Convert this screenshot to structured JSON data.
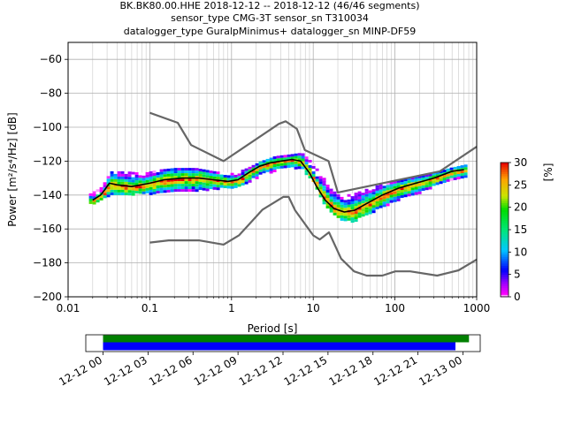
{
  "chart_data": {
    "type": "heatmap",
    "title_lines": [
      "BK.BK80.00.HHE   2018-12-12 -- 2018-12-12  (46/46 segments)",
      "sensor_type CMG-3T sensor_sn T310034",
      "datalogger_type GuralpMinimus+ datalogger_sn MINP-DF59"
    ],
    "xlabel": "Period [s]",
    "ylabel": "Power [m²/s⁴/Hz] [dB]",
    "xscale": "log",
    "xlim": [
      0.01,
      1000
    ],
    "ylim": [
      -200,
      -50
    ],
    "grid": true,
    "x_ticks": [
      {
        "value": 0.01,
        "label": "0.01"
      },
      {
        "value": 0.1,
        "label": "0.1"
      },
      {
        "value": 1,
        "label": "1"
      },
      {
        "value": 10,
        "label": "10"
      },
      {
        "value": 100,
        "label": "100"
      },
      {
        "value": 1000,
        "label": "1000"
      }
    ],
    "y_ticks": [
      {
        "value": -60,
        "label": "−60"
      },
      {
        "value": -80,
        "label": "−80"
      },
      {
        "value": -100,
        "label": "−100"
      },
      {
        "value": -120,
        "label": "−120"
      },
      {
        "value": -140,
        "label": "−140"
      },
      {
        "value": -160,
        "label": "−160"
      },
      {
        "value": -180,
        "label": "−180"
      },
      {
        "value": -200,
        "label": "−200"
      }
    ],
    "colorbar": {
      "label": "[%]",
      "min": 0,
      "max": 30,
      "ticks": [
        {
          "value": 0,
          "label": "0"
        },
        {
          "value": 5,
          "label": "5"
        },
        {
          "value": 10,
          "label": "10"
        },
        {
          "value": 15,
          "label": "15"
        },
        {
          "value": 20,
          "label": "20"
        },
        {
          "value": 25,
          "label": "25"
        },
        {
          "value": 30,
          "label": "30"
        }
      ]
    },
    "noise_model_high": {
      "color": "#666666",
      "points": [
        [
          0.1,
          -91.5
        ],
        [
          0.22,
          -97.4
        ],
        [
          0.32,
          -110.5
        ],
        [
          0.8,
          -120
        ],
        [
          3.8,
          -98
        ],
        [
          4.6,
          -96.5
        ],
        [
          6.3,
          -101
        ],
        [
          7.9,
          -113.5
        ],
        [
          15.4,
          -120
        ],
        [
          20,
          -138.5
        ],
        [
          354.8,
          -126
        ],
        [
          1000,
          -111.5
        ]
      ]
    },
    "noise_model_low": {
      "color": "#666666",
      "points": [
        [
          0.1,
          -168
        ],
        [
          0.17,
          -166.7
        ],
        [
          0.4,
          -166.7
        ],
        [
          0.8,
          -169.2
        ],
        [
          1.24,
          -163.7
        ],
        [
          2.4,
          -148.6
        ],
        [
          4.3,
          -141.1
        ],
        [
          5,
          -141.1
        ],
        [
          6,
          -149
        ],
        [
          10,
          -163.8
        ],
        [
          12,
          -166.2
        ],
        [
          15.6,
          -162
        ],
        [
          21.9,
          -177.5
        ],
        [
          31.6,
          -185
        ],
        [
          45,
          -187.5
        ],
        [
          70,
          -187.5
        ],
        [
          101,
          -185
        ],
        [
          154,
          -185
        ],
        [
          328,
          -187.5
        ],
        [
          600,
          -184.4
        ],
        [
          1000,
          -178
        ]
      ]
    },
    "mean_curve": {
      "color": "#000000",
      "points": [
        [
          0.02,
          -143
        ],
        [
          0.025,
          -140
        ],
        [
          0.028,
          -137
        ],
        [
          0.032,
          -133
        ],
        [
          0.04,
          -134
        ],
        [
          0.06,
          -135
        ],
        [
          0.1,
          -133
        ],
        [
          0.15,
          -131
        ],
        [
          0.25,
          -130
        ],
        [
          0.4,
          -130
        ],
        [
          0.6,
          -131
        ],
        [
          0.9,
          -132
        ],
        [
          1.2,
          -131
        ],
        [
          1.6,
          -127
        ],
        [
          2.2,
          -123
        ],
        [
          3,
          -121
        ],
        [
          4,
          -120
        ],
        [
          5.5,
          -119
        ],
        [
          7,
          -120
        ],
        [
          9,
          -127
        ],
        [
          11,
          -135
        ],
        [
          14,
          -143
        ],
        [
          18,
          -148
        ],
        [
          24,
          -150
        ],
        [
          32,
          -149
        ],
        [
          45,
          -145
        ],
        [
          70,
          -140
        ],
        [
          110,
          -136
        ],
        [
          180,
          -133
        ],
        [
          300,
          -130
        ],
        [
          500,
          -126
        ],
        [
          700,
          -125
        ]
      ]
    },
    "density_band": [
      {
        "x": 0.018,
        "lo": -145,
        "hi": -139
      },
      {
        "x": 0.025,
        "lo": -142,
        "hi": -135
      },
      {
        "x": 0.032,
        "lo": -140,
        "hi": -126
      },
      {
        "x": 0.05,
        "lo": -139,
        "hi": -126
      },
      {
        "x": 0.08,
        "lo": -139,
        "hi": -127
      },
      {
        "x": 0.12,
        "lo": -138,
        "hi": -125
      },
      {
        "x": 0.2,
        "lo": -138,
        "hi": -124
      },
      {
        "x": 0.35,
        "lo": -137,
        "hi": -124
      },
      {
        "x": 0.6,
        "lo": -136,
        "hi": -126
      },
      {
        "x": 1,
        "lo": -135,
        "hi": -127
      },
      {
        "x": 1.5,
        "lo": -132,
        "hi": -124
      },
      {
        "x": 2.2,
        "lo": -128,
        "hi": -120
      },
      {
        "x": 3.3,
        "lo": -125,
        "hi": -117
      },
      {
        "x": 5,
        "lo": -123,
        "hi": -116
      },
      {
        "x": 7,
        "lo": -124,
        "hi": -115
      },
      {
        "x": 9.5,
        "lo": -131,
        "hi": -121
      },
      {
        "x": 12,
        "lo": -142,
        "hi": -128
      },
      {
        "x": 16,
        "lo": -150,
        "hi": -135
      },
      {
        "x": 22,
        "lo": -155,
        "hi": -140
      },
      {
        "x": 30,
        "lo": -155,
        "hi": -139
      },
      {
        "x": 45,
        "lo": -151,
        "hi": -136
      },
      {
        "x": 70,
        "lo": -146,
        "hi": -133
      },
      {
        "x": 110,
        "lo": -142,
        "hi": -131
      },
      {
        "x": 170,
        "lo": -139,
        "hi": -129
      },
      {
        "x": 280,
        "lo": -135,
        "hi": -127
      },
      {
        "x": 450,
        "lo": -131,
        "hi": -124
      },
      {
        "x": 700,
        "lo": -129,
        "hi": -122
      }
    ],
    "timeline": {
      "t_start": "12-12 00",
      "t_end": "12-13 00",
      "tick_labels": [
        "12-12 00",
        "12-12 03",
        "12-12 06",
        "12-12 09",
        "12-12 12",
        "12-12 15",
        "12-12 18",
        "12-12 21",
        "12-13 00"
      ],
      "bars": [
        {
          "color": "#008000",
          "start_hour": 0,
          "end_hour": 24.4
        },
        {
          "color": "#0000ff",
          "start_hour": 0,
          "end_hour": 23.5
        }
      ]
    }
  }
}
